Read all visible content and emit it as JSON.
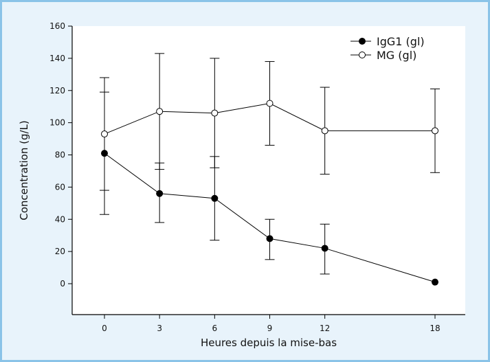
{
  "chart_data": {
    "type": "line",
    "title": "",
    "xlabel": "Heures depuis la mise-bas",
    "ylabel": "Concentration (g/L)",
    "x_categories": [
      "0",
      "3",
      "6",
      "9",
      "12",
      "18"
    ],
    "y_ticks": [
      "160",
      "140",
      "120",
      "100",
      "80",
      "60",
      "40",
      "20",
      "0"
    ],
    "ylim": [
      -18,
      160
    ],
    "grid": false,
    "legend_position": "top-right",
    "series": [
      {
        "name": "IgG1 (gl)",
        "marker": "filled-circle",
        "color": "#000000",
        "values": [
          81,
          56,
          53,
          28,
          22,
          1
        ],
        "err_low": [
          43,
          38,
          27,
          15,
          6,
          1
        ],
        "err_high": [
          119,
          75,
          79,
          40,
          37,
          1
        ]
      },
      {
        "name": "MG (gl)",
        "marker": "open-circle",
        "color": "#000000",
        "values": [
          93,
          107,
          106,
          112,
          95,
          95
        ],
        "err_low": [
          58,
          71,
          72,
          86,
          68,
          69
        ],
        "err_high": [
          128,
          143,
          140,
          138,
          122,
          121
        ]
      }
    ]
  }
}
